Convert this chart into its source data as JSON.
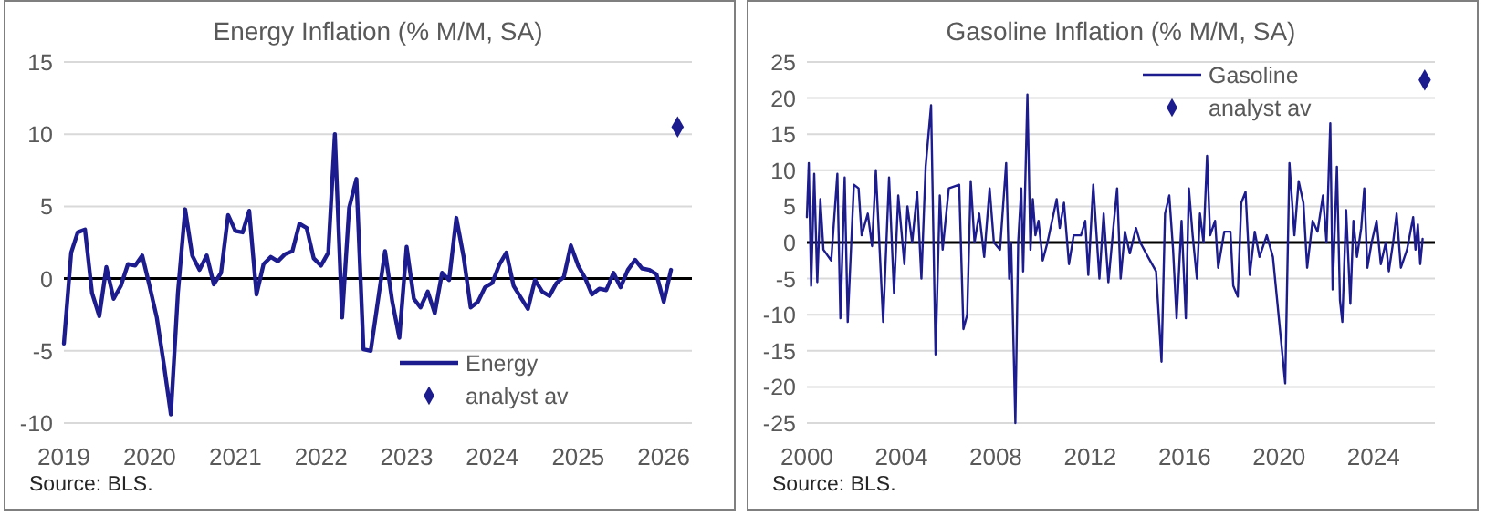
{
  "chart_data": [
    {
      "type": "line",
      "title": "Energy Inflation (% M/M, SA)",
      "annotations": [
        "Source: BLS."
      ],
      "grid": "y",
      "legend": "bottom right",
      "xlim": [
        "2019-01",
        "2026-05"
      ],
      "xticks": [
        "2019",
        "2020",
        "2021",
        "2022",
        "2023",
        "2024",
        "2025",
        "2026"
      ],
      "ylim": [
        -10,
        15
      ],
      "yticks": [
        -10,
        -5,
        0,
        5,
        10,
        15
      ],
      "x": [
        "2019-01",
        "2019-02",
        "2019-03",
        "2019-04",
        "2019-05",
        "2019-06",
        "2019-07",
        "2019-08",
        "2019-09",
        "2019-10",
        "2019-11",
        "2019-12",
        "2020-01",
        "2020-02",
        "2020-03",
        "2020-04",
        "2020-05",
        "2020-06",
        "2020-07",
        "2020-08",
        "2020-09",
        "2020-10",
        "2020-11",
        "2020-12",
        "2021-01",
        "2021-02",
        "2021-03",
        "2021-04",
        "2021-05",
        "2021-06",
        "2021-07",
        "2021-08",
        "2021-09",
        "2021-10",
        "2021-11",
        "2021-12",
        "2022-01",
        "2022-02",
        "2022-03",
        "2022-04",
        "2022-05",
        "2022-06",
        "2022-07",
        "2022-08",
        "2022-09",
        "2022-10",
        "2022-11",
        "2022-12",
        "2023-01",
        "2023-02",
        "2023-03",
        "2023-04",
        "2023-05",
        "2023-06",
        "2023-07",
        "2023-08",
        "2023-09",
        "2023-10",
        "2023-11",
        "2023-12",
        "2024-01",
        "2024-02",
        "2024-03",
        "2024-04",
        "2024-05",
        "2024-06",
        "2024-07",
        "2024-08",
        "2024-09",
        "2024-10",
        "2024-11",
        "2024-12",
        "2025-01",
        "2025-02",
        "2025-03",
        "2025-04",
        "2025-05",
        "2025-06",
        "2025-07",
        "2025-08",
        "2025-09",
        "2025-10",
        "2025-11",
        "2025-12",
        "2026-01",
        "2026-02"
      ],
      "series": [
        {
          "name": "Energy",
          "color": "#1c1c8f",
          "values": [
            -4.5,
            1.8,
            3.2,
            3.4,
            -1.0,
            -2.6,
            0.8,
            -1.4,
            -0.5,
            1.0,
            0.9,
            1.6,
            -0.5,
            -2.7,
            -5.8,
            -9.4,
            -1.0,
            4.8,
            1.6,
            0.6,
            1.6,
            -0.4,
            0.4,
            4.4,
            3.3,
            3.2,
            4.7,
            -1.1,
            1.0,
            1.5,
            1.2,
            1.7,
            1.9,
            3.8,
            3.5,
            1.4,
            0.9,
            1.8,
            10.0,
            -2.7,
            4.9,
            6.9,
            -4.9,
            -5.0,
            -1.5,
            1.9,
            -1.6,
            -4.1,
            2.2,
            -1.4,
            -2.0,
            -0.9,
            -2.4,
            0.4,
            -0.1,
            4.2,
            1.5,
            -2.0,
            -1.6,
            -0.6,
            -0.3,
            1.0,
            1.8,
            -0.5,
            -1.3,
            -2.1,
            -0.1,
            -0.9,
            -1.2,
            -0.3,
            0.1,
            2.3,
            0.9,
            0.0,
            -1.1,
            -0.7,
            -0.8,
            0.4,
            -0.6,
            0.6,
            1.3,
            0.7,
            0.6,
            0.3,
            -1.6,
            0.6
          ]
        },
        {
          "name": "analyst av",
          "type": "scatter",
          "marker": "diamond",
          "color": "#1c1c8f",
          "x": [
            "2026-03"
          ],
          "values": [
            10.5
          ]
        }
      ]
    },
    {
      "type": "line",
      "title": "Gasoline Inflation (% M/M, SA)",
      "annotations": [
        "Source: BLS."
      ],
      "grid": "y",
      "legend": "top right",
      "xlim": [
        2000,
        2026.6
      ],
      "xticks": [
        2000,
        2004,
        2008,
        2012,
        2016,
        2020,
        2024
      ],
      "ylim": [
        -25,
        25
      ],
      "yticks": [
        -25,
        -20,
        -15,
        -10,
        -5,
        0,
        5,
        10,
        15,
        20,
        25
      ],
      "x": [
        2000.0,
        2000.08,
        2000.18,
        2000.31,
        2000.44,
        2000.57,
        2000.7,
        2001.03,
        2001.29,
        2001.42,
        2001.6,
        2001.73,
        2001.99,
        2002.19,
        2002.32,
        2002.58,
        2002.76,
        2002.92,
        2003.23,
        2003.48,
        2003.69,
        2003.87,
        2004.13,
        2004.26,
        2004.46,
        2004.67,
        2004.85,
        2005.03,
        2005.26,
        2005.45,
        2005.63,
        2005.75,
        2006.01,
        2006.45,
        2006.63,
        2006.79,
        2006.94,
        2007.1,
        2007.3,
        2007.51,
        2007.74,
        2007.92,
        2008.18,
        2008.44,
        2008.57,
        2008.65,
        2008.83,
        2008.95,
        2009.08,
        2009.16,
        2009.34,
        2009.47,
        2009.57,
        2009.68,
        2009.81,
        2009.99,
        2010.19,
        2010.58,
        2010.71,
        2010.89,
        2011.1,
        2011.3,
        2011.61,
        2011.79,
        2011.92,
        2012.13,
        2012.39,
        2012.57,
        2012.77,
        2012.98,
        2013.14,
        2013.29,
        2013.47,
        2013.68,
        2013.94,
        2014.12,
        2014.45,
        2014.79,
        2015.02,
        2015.17,
        2015.35,
        2015.51,
        2015.66,
        2015.87,
        2016.05,
        2016.18,
        2016.34,
        2016.52,
        2016.65,
        2016.8,
        2016.95,
        2017.08,
        2017.29,
        2017.42,
        2017.68,
        2017.94,
        2018.06,
        2018.25,
        2018.4,
        2018.58,
        2018.76,
        2018.97,
        2019.17,
        2019.48,
        2019.74,
        2020.26,
        2020.44,
        2020.65,
        2020.83,
        2021.03,
        2021.19,
        2021.42,
        2021.63,
        2021.86,
        2022.01,
        2022.17,
        2022.27,
        2022.45,
        2022.58,
        2022.68,
        2022.84,
        2023.02,
        2023.15,
        2023.3,
        2023.48,
        2023.61,
        2023.74,
        2023.92,
        2024.13,
        2024.31,
        2024.52,
        2024.65,
        2024.83,
        2024.98,
        2025.16,
        2025.42,
        2025.68,
        2025.78,
        2025.88,
        2025.98,
        2026.08
      ],
      "series": [
        {
          "name": "Gasoline",
          "color": "#1c1c8f",
          "values": [
            3.5,
            11,
            -6,
            9.5,
            -5.5,
            6,
            -1,
            -2.5,
            9.5,
            -10.5,
            9,
            -11,
            8,
            7.5,
            1,
            4,
            -0.5,
            10,
            -11,
            9,
            -7,
            6.5,
            -3,
            5,
            0,
            7,
            -5,
            10.5,
            19,
            -15.5,
            6.5,
            -1,
            7.5,
            8,
            -12,
            -10,
            8.5,
            0,
            4,
            -2,
            7.5,
            0,
            -1,
            11,
            -5,
            0,
            -25,
            0,
            7.5,
            -4,
            20.5,
            -1,
            6,
            1,
            3,
            -2.5,
            0,
            6,
            2,
            5.5,
            -3,
            1,
            1,
            3,
            -4.5,
            8,
            -5,
            4,
            -5.5,
            2,
            7.5,
            -5,
            1.5,
            -1.5,
            2,
            0,
            -2,
            -4,
            -16.5,
            4,
            6.5,
            -1,
            -10.5,
            3,
            -10.5,
            7.5,
            1,
            -5,
            4,
            0,
            12,
            1,
            3,
            -3.5,
            1.5,
            1.5,
            -6,
            -7.5,
            5.5,
            7,
            -4.5,
            1.5,
            -2,
            1,
            -2,
            -19.5,
            11,
            1,
            8.5,
            5.5,
            -3.5,
            3,
            1.5,
            6.5,
            0,
            16.5,
            -6.5,
            10.5,
            -8,
            -11,
            4.5,
            -8.5,
            3,
            -2,
            2,
            7.5,
            -3.5,
            0,
            3,
            -3,
            0,
            -4,
            0,
            4,
            -3.5,
            -1,
            3.5,
            -1,
            2.5,
            -3,
            0.5
          ]
        },
        {
          "name": "analyst av",
          "type": "scatter",
          "marker": "diamond",
          "color": "#1c1c8f",
          "x": [
            2026.17
          ],
          "values": [
            22.5
          ]
        }
      ]
    }
  ]
}
